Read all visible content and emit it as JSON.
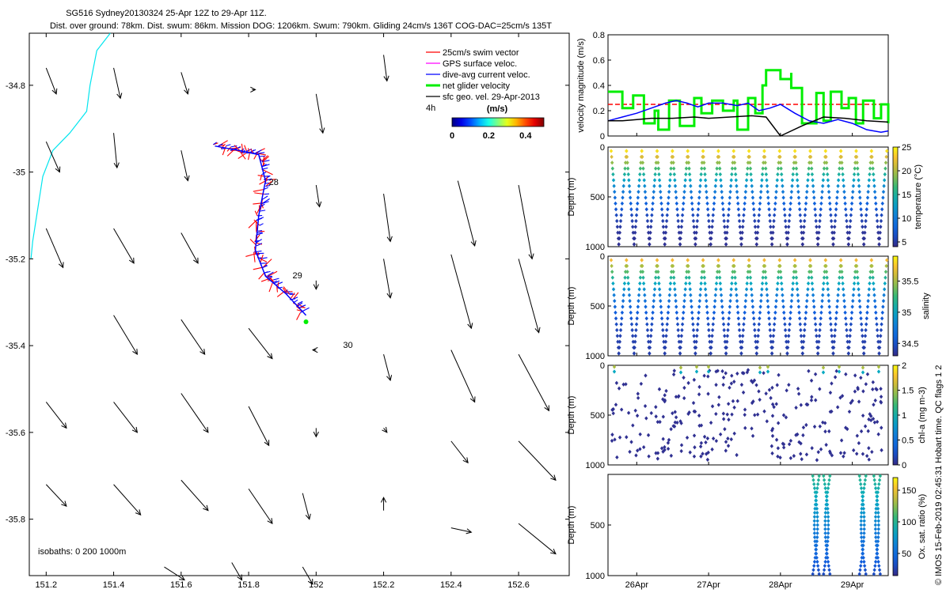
{
  "header": {
    "line1": "SG516 Sydney20130324 25-Apr 12Z to 29-Apr 11Z.",
    "line2": "Dist. over ground: 78km. Dist. swum: 86km. Mission DOG: 1206km. Swum: 790km. Gliding 24cm/s 136T COG-DAC=25cm/s 135T"
  },
  "footer": "© IMOS 15-Feb-2019 02:45:31 Hobart time. QC flags 1  2",
  "colors": {
    "swim_vector": "#ff0000",
    "gps_surface": "#ff00ff",
    "dive_avg_current": "#0000ff",
    "net_glider": "#00ee00",
    "sfc_geo": "#000000",
    "coastline": "#00e5ee",
    "dashed_ref": "#ff0000"
  },
  "chart_data": [
    {
      "type": "map",
      "xlim": [
        151.15,
        152.75
      ],
      "ylim": [
        -35.93,
        -34.68
      ],
      "xticks": [
        "151.2",
        "151.4",
        "151.6",
        "151.8",
        "152",
        "152.2",
        "152.4",
        "152.6"
      ],
      "xtick_values": [
        151.2,
        151.4,
        151.6,
        151.8,
        152.0,
        152.2,
        152.4,
        152.6
      ],
      "yticks": [
        "-34.8",
        "-35",
        "-35.2",
        "-35.4",
        "-35.6",
        "-35.8"
      ],
      "ytick_values": [
        -34.8,
        -35.0,
        -35.2,
        -35.4,
        -35.6,
        -35.8
      ],
      "legend": {
        "placement": "top-right",
        "entries": [
          "25cm/s swim vector",
          "GPS surface veloc.",
          "dive-avg current veloc.",
          "net glider velocity",
          "sfc geo. vel. 29-Apr-2013"
        ],
        "interval": "4h",
        "colorbar_title": "(m/s)",
        "colorbar_ticks": [
          "0",
          "0.2",
          "0.4"
        ],
        "colorbar_range": [
          0,
          0.5
        ]
      },
      "isobaths_label": "isobaths: 0   200  1000m",
      "day_labels": [
        {
          "text": "28",
          "lon": 151.86,
          "lat": -35.03
        },
        {
          "text": "29",
          "lon": 151.93,
          "lat": -35.245
        },
        {
          "text": "30",
          "lon": 152.08,
          "lat": -35.405
        }
      ],
      "track": [
        [
          151.7,
          -34.94
        ],
        [
          151.77,
          -34.95
        ],
        [
          151.83,
          -34.96
        ],
        [
          151.85,
          -35.02
        ],
        [
          151.83,
          -35.1
        ],
        [
          151.82,
          -35.18
        ],
        [
          151.85,
          -35.24
        ],
        [
          151.91,
          -35.28
        ],
        [
          151.97,
          -35.33
        ]
      ],
      "track_end": [
        151.97,
        -35.345
      ],
      "coastline": [
        [
          151.39,
          -34.68
        ],
        [
          151.35,
          -34.72
        ],
        [
          151.33,
          -34.8
        ],
        [
          151.32,
          -34.86
        ],
        [
          151.27,
          -34.91
        ],
        [
          151.22,
          -34.95
        ],
        [
          151.19,
          -35.01
        ],
        [
          151.18,
          -35.06
        ],
        [
          151.17,
          -35.11
        ],
        [
          151.16,
          -35.16
        ],
        [
          151.155,
          -35.2
        ]
      ],
      "geo_vectors": [
        [
          151.2,
          -34.76,
          0.03,
          -0.06
        ],
        [
          151.4,
          -34.76,
          0.02,
          -0.07
        ],
        [
          151.6,
          -34.77,
          0.02,
          -0.05
        ],
        [
          151.81,
          -34.81,
          0.01,
          0.0
        ],
        [
          152.0,
          -34.82,
          0.02,
          -0.09
        ],
        [
          152.2,
          -34.73,
          0.01,
          -0.06
        ],
        [
          151.2,
          -34.93,
          0.04,
          -0.07
        ],
        [
          151.4,
          -34.91,
          0.01,
          -0.08
        ],
        [
          151.6,
          -34.95,
          0.02,
          -0.07
        ],
        [
          152.0,
          -35.03,
          0.01,
          -0.05
        ],
        [
          152.2,
          -35.05,
          0.02,
          -0.11
        ],
        [
          152.42,
          -35.02,
          0.05,
          -0.15
        ],
        [
          152.6,
          -35.03,
          0.04,
          -0.17
        ],
        [
          151.2,
          -35.13,
          0.05,
          -0.09
        ],
        [
          151.4,
          -35.13,
          0.06,
          -0.08
        ],
        [
          151.6,
          -35.14,
          0.05,
          -0.07
        ],
        [
          152.0,
          -35.25,
          0.0,
          -0.02
        ],
        [
          152.2,
          -35.2,
          0.02,
          -0.09
        ],
        [
          152.4,
          -35.19,
          0.06,
          -0.17
        ],
        [
          152.6,
          -35.2,
          0.06,
          -0.17
        ],
        [
          151.4,
          -35.33,
          0.07,
          -0.09
        ],
        [
          151.6,
          -35.34,
          0.07,
          -0.08
        ],
        [
          151.8,
          -35.36,
          0.07,
          -0.07
        ],
        [
          152.0,
          -35.41,
          -0.01,
          0.0
        ],
        [
          152.2,
          -35.42,
          0.02,
          -0.06
        ],
        [
          152.4,
          -35.41,
          0.07,
          -0.12
        ],
        [
          152.6,
          -35.42,
          0.09,
          -0.13
        ],
        [
          151.2,
          -35.53,
          0.06,
          -0.06
        ],
        [
          151.4,
          -35.53,
          0.07,
          -0.07
        ],
        [
          151.6,
          -35.51,
          0.08,
          -0.09
        ],
        [
          151.8,
          -35.54,
          0.06,
          -0.09
        ],
        [
          152.0,
          -35.59,
          0.0,
          -0.02
        ],
        [
          152.2,
          -35.59,
          0.01,
          -0.01
        ],
        [
          152.4,
          -35.62,
          0.05,
          -0.05
        ],
        [
          152.6,
          -35.62,
          0.11,
          -0.09
        ],
        [
          151.2,
          -35.72,
          0.06,
          -0.05
        ],
        [
          151.4,
          -35.72,
          0.08,
          -0.07
        ],
        [
          151.6,
          -35.71,
          0.08,
          -0.07
        ],
        [
          151.8,
          -35.73,
          0.07,
          -0.08
        ],
        [
          151.96,
          -35.74,
          0.02,
          -0.06
        ],
        [
          152.2,
          -35.78,
          0.0,
          0.03
        ],
        [
          152.4,
          -35.82,
          0.06,
          -0.01
        ],
        [
          152.6,
          -35.81,
          0.11,
          -0.07
        ],
        [
          151.55,
          -35.91,
          0.06,
          -0.03
        ],
        [
          151.75,
          -35.9,
          0.03,
          -0.04
        ],
        [
          151.96,
          -35.91,
          0.03,
          -0.04
        ]
      ]
    },
    {
      "type": "line",
      "ylabel": "velocity magnitude (m/s)",
      "ylim": [
        0,
        0.8
      ],
      "yticks": [
        "0",
        "0.2",
        "0.4",
        "0.6",
        "0.8"
      ],
      "xlim": [
        25.6,
        29.5
      ],
      "xticks": [
        "26Apr",
        "27Apr",
        "28Apr",
        "29Apr"
      ],
      "xtick_values": [
        26,
        27,
        28,
        29
      ],
      "reference_line": 0.25,
      "series": [
        {
          "color": "#00ee00",
          "width": 3,
          "points": [
            [
              25.6,
              0.35
            ],
            [
              25.8,
              0.35
            ],
            [
              25.8,
              0.22
            ],
            [
              25.95,
              0.22
            ],
            [
              25.95,
              0.32
            ],
            [
              26.1,
              0.32
            ],
            [
              26.1,
              0.1
            ],
            [
              26.25,
              0.1
            ],
            [
              26.25,
              0.2
            ],
            [
              26.3,
              0.2
            ],
            [
              26.3,
              0.05
            ],
            [
              26.45,
              0.05
            ],
            [
              26.45,
              0.28
            ],
            [
              26.6,
              0.28
            ],
            [
              26.6,
              0.08
            ],
            [
              26.8,
              0.08
            ],
            [
              26.8,
              0.3
            ],
            [
              26.9,
              0.3
            ],
            [
              26.9,
              0.18
            ],
            [
              27.05,
              0.18
            ],
            [
              27.05,
              0.28
            ],
            [
              27.2,
              0.28
            ],
            [
              27.2,
              0.2
            ],
            [
              27.35,
              0.2
            ],
            [
              27.35,
              0.28
            ],
            [
              27.4,
              0.28
            ],
            [
              27.4,
              0.05
            ],
            [
              27.55,
              0.05
            ],
            [
              27.55,
              0.3
            ],
            [
              27.65,
              0.3
            ],
            [
              27.65,
              0.18
            ],
            [
              27.75,
              0.18
            ],
            [
              27.75,
              0.4
            ],
            [
              27.8,
              0.4
            ],
            [
              27.8,
              0.52
            ],
            [
              28.0,
              0.52
            ],
            [
              28.0,
              0.45
            ],
            [
              28.15,
              0.45
            ],
            [
              28.15,
              0.5
            ],
            [
              28.15,
              0.38
            ],
            [
              28.3,
              0.38
            ],
            [
              28.3,
              0.1
            ],
            [
              28.5,
              0.1
            ],
            [
              28.5,
              0.34
            ],
            [
              28.6,
              0.34
            ],
            [
              28.6,
              0.12
            ],
            [
              28.7,
              0.12
            ],
            [
              28.7,
              0.35
            ],
            [
              28.85,
              0.35
            ],
            [
              28.85,
              0.22
            ],
            [
              28.95,
              0.22
            ],
            [
              28.95,
              0.3
            ],
            [
              29.05,
              0.3
            ],
            [
              29.05,
              0.1
            ],
            [
              29.15,
              0.1
            ],
            [
              29.15,
              0.28
            ],
            [
              29.3,
              0.28
            ],
            [
              29.3,
              0.14
            ],
            [
              29.4,
              0.14
            ],
            [
              29.4,
              0.25
            ],
            [
              29.5,
              0.25
            ],
            [
              29.5,
              0.1
            ]
          ]
        },
        {
          "color": "#0000ff",
          "width": 1.5,
          "points": [
            [
              25.6,
              0.12
            ],
            [
              25.8,
              0.15
            ],
            [
              26.0,
              0.18
            ],
            [
              26.2,
              0.22
            ],
            [
              26.4,
              0.26
            ],
            [
              26.55,
              0.28
            ],
            [
              26.7,
              0.26
            ],
            [
              26.85,
              0.23
            ],
            [
              27.0,
              0.26
            ],
            [
              27.2,
              0.26
            ],
            [
              27.4,
              0.24
            ],
            [
              27.55,
              0.26
            ],
            [
              27.7,
              0.2
            ],
            [
              27.85,
              0.22
            ],
            [
              28.0,
              0.25
            ],
            [
              28.2,
              0.18
            ],
            [
              28.4,
              0.12
            ],
            [
              28.6,
              0.1
            ],
            [
              28.8,
              0.13
            ],
            [
              29.0,
              0.1
            ],
            [
              29.2,
              0.05
            ],
            [
              29.4,
              0.03
            ],
            [
              29.5,
              0.04
            ]
          ]
        },
        {
          "color": "#000000",
          "width": 1.5,
          "points": [
            [
              25.6,
              0.12
            ],
            [
              25.8,
              0.12
            ],
            [
              26.0,
              0.13
            ],
            [
              26.2,
              0.14
            ],
            [
              26.5,
              0.14
            ],
            [
              26.8,
              0.15
            ],
            [
              27.0,
              0.14
            ],
            [
              27.3,
              0.15
            ],
            [
              27.6,
              0.16
            ],
            [
              27.8,
              0.15
            ],
            [
              28.0,
              0.0
            ],
            [
              28.3,
              0.08
            ],
            [
              28.6,
              0.15
            ],
            [
              28.9,
              0.14
            ],
            [
              29.2,
              0.12
            ],
            [
              29.5,
              0.11
            ]
          ]
        }
      ]
    },
    {
      "type": "scatter",
      "variable": "temperature",
      "ylabel": "Depth (m)",
      "colorbar_label": "temperature (°C)",
      "colorbar_ticks": [
        "5",
        "10",
        "15",
        "20",
        "25"
      ],
      "colorbar_range": [
        4,
        25
      ],
      "ylim": [
        1000,
        0
      ],
      "yticks": [
        "0",
        "500",
        "1000"
      ],
      "profiles": 36,
      "surface_value": 24,
      "deep_value": 4.5
    },
    {
      "type": "scatter",
      "variable": "salinity",
      "ylabel": "Depth (m)",
      "colorbar_label": "salinity",
      "colorbar_ticks": [
        "34.5",
        "35",
        "35.5"
      ],
      "colorbar_range": [
        34.3,
        35.9
      ],
      "ylim": [
        1000,
        0
      ],
      "yticks": [
        "0",
        "500",
        "1000"
      ],
      "profiles": 36,
      "surface_value": 35.7,
      "deep_value": 34.4
    },
    {
      "type": "scatter",
      "variable": "chl-a",
      "ylabel": "Depth (m)",
      "colorbar_label": "chl-a (mg m-3)",
      "colorbar_ticks": [
        "0",
        "0.5",
        "1",
        "1.5",
        "2"
      ],
      "colorbar_range": [
        0,
        2
      ],
      "ylim": [
        1000,
        0
      ],
      "yticks": [
        "0",
        "500",
        "1000"
      ]
    },
    {
      "type": "scatter",
      "variable": "oxygen saturation",
      "ylabel": "Depth (m)",
      "colorbar_label": "Ox. sat. ratio (%)",
      "colorbar_ticks": [
        "50",
        "100",
        "150"
      ],
      "colorbar_range": [
        15,
        170
      ],
      "ylim": [
        1000,
        0
      ],
      "yticks": [
        "500",
        "1000"
      ],
      "xticks": [
        "26Apr",
        "27Apr",
        "28Apr",
        "29Apr"
      ],
      "profile_days": [
        28.45,
        28.6,
        29.1,
        29.3
      ]
    }
  ]
}
